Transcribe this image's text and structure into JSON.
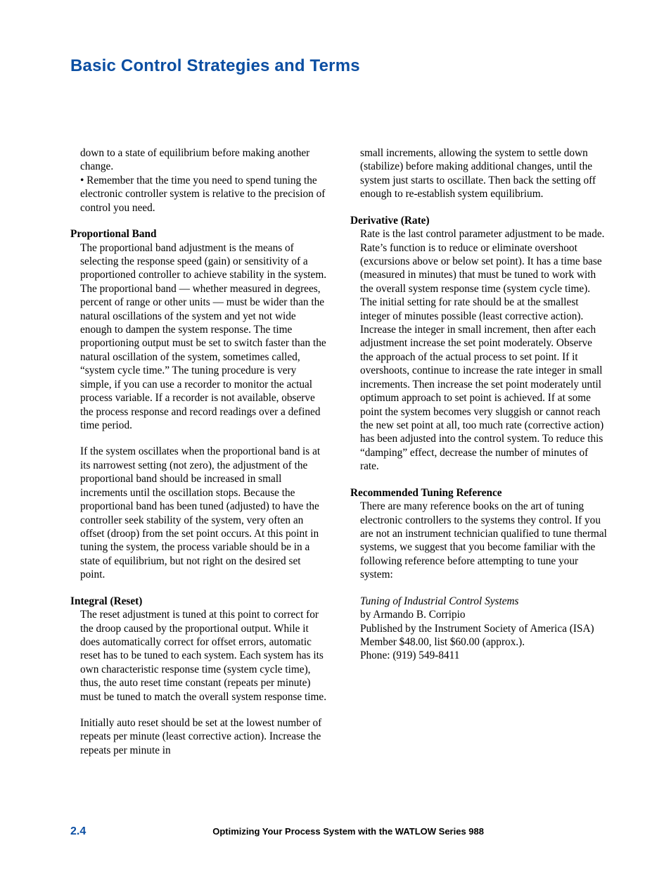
{
  "header": {
    "title": "Basic Control Strategies and Terms"
  },
  "left": {
    "intro1": "down to a state of equilibrium before making another change.",
    "intro2": "• Remember that the time you need to spend tuning the electronic controller system is relative to the precision of control you need.",
    "h1": "Proportional Band",
    "p1": "The proportional band adjustment is the means of selecting the response speed (gain) or sensitivity of a proportioned controller to achieve stability in the system. The proportional band — whether measured in degrees, percent of range or other units — must be wider than the natural oscillations of the system and yet not wide enough to dampen the system response. The time proportioning output must be set to switch faster than the natural oscillation of the system, sometimes called, “system cycle time.” The tuning procedure is very simple, if you can use a recorder to monitor the actual process variable. If a recorder is not available, observe the process response and record readings over a defined time period.",
    "p2": "If the system oscillates when the proportional band is at its narrowest setting (not zero), the adjustment of the proportional band should be increased in small increments until the oscillation stops. Because the proportional band has been tuned (adjusted) to have the controller seek stability of the system, very often an offset (droop) from the set point occurs. At this point in tuning the system, the process variable should be in a state of equilibrium, but not right on the desired set point.",
    "h2": "Integral (Reset)",
    "p3": "The reset adjustment is tuned at this point to correct for the droop caused by the proportional output. While it does automatically correct for offset errors, automatic reset has to be tuned to each system. Each system has its own characteristic response time (system cycle time), thus, the auto reset time constant (repeats per minute) must be tuned to match the overall system response time.",
    "p4": "Initially auto reset should be set at the lowest number of repeats per minute (least corrective action). Increase the repeats per minute in"
  },
  "right": {
    "intro": "small increments, allowing the system to settle down (stabilize) before making additional changes, until the system just starts to oscillate. Then back the setting off enough to re-establish system equilibrium.",
    "h1": "Derivative (Rate)",
    "p1": "Rate is the last control parameter adjustment to be made. Rate’s function is to reduce or eliminate overshoot (excursions above or below set point). It has a time base (measured in minutes) that must be tuned to work with the overall system response time (system cycle time). The initial setting for rate should be at the smallest integer of minutes possible (least corrective action). Increase the integer in small increment, then after each adjustment increase the set point moderately. Observe the approach of the actual process to set point. If it overshoots, continue to increase the rate integer in small increments. Then increase the set point moderately until optimum approach to set point is achieved. If at some point the system becomes very sluggish or cannot reach the new set point at all, too much rate (corrective action) has been adjusted into the control system. To reduce this “damping” effect, decrease the number of minutes of rate.",
    "h2": "Recommended Tuning Reference",
    "p2": "There are many reference books on the art of tuning electronic controllers to the systems they control. If you are not an instrument technician qualified to tune thermal systems, we suggest that you become familiar with the following reference before attempting to tune your system:",
    "ref_title": "Tuning of Industrial Control Systems",
    "ref_author": "by Armando B. Corripio",
    "ref_pub": "Published by the Instrument Society of America (ISA)",
    "ref_price": "Member $48.00, list $60.00 (approx.).",
    "ref_phone": "Phone: (919) 549-8411"
  },
  "footer": {
    "page": "2.4",
    "title": "Optimizing Your Process System with the WATLOW Series 988"
  }
}
